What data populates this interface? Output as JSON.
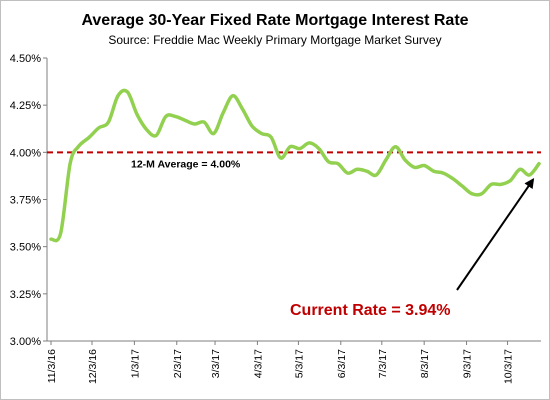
{
  "chart_data": {
    "type": "line",
    "title": "Average 30-Year Fixed Rate Mortgage Interest Rate",
    "subtitle": "Source: Freddie Mac Weekly Primary Mortgage Market Survey",
    "xlabel": "",
    "ylabel": "",
    "ylim": [
      3.0,
      4.5
    ],
    "y_ticks": [
      "3.00%",
      "3.25%",
      "3.50%",
      "3.75%",
      "4.00%",
      "4.25%",
      "4.50%"
    ],
    "x_tick_labels": [
      "11/3/16",
      "12/3/16",
      "1/3/17",
      "2/3/17",
      "3/3/17",
      "4/3/17",
      "5/3/17",
      "6/3/17",
      "7/3/17",
      "8/3/17",
      "9/3/17",
      "10/3/17"
    ],
    "grid": false,
    "series": [
      {
        "color": "#92d050",
        "x": [
          "11/3/16",
          "11/10/16",
          "11/17/16",
          "11/23/16",
          "12/1/16",
          "12/8/16",
          "12/15/16",
          "12/22/16",
          "12/29/16",
          "1/5/17",
          "1/12/17",
          "1/19/17",
          "1/26/17",
          "2/2/17",
          "2/9/17",
          "2/16/17",
          "2/23/17",
          "3/2/17",
          "3/9/17",
          "3/16/17",
          "3/23/17",
          "3/30/17",
          "4/6/17",
          "4/13/17",
          "4/20/17",
          "4/27/17",
          "5/4/17",
          "5/11/17",
          "5/18/17",
          "5/25/17",
          "6/1/17",
          "6/8/17",
          "6/15/17",
          "6/22/17",
          "6/29/17",
          "7/6/17",
          "7/13/17",
          "7/20/17",
          "7/27/17",
          "8/3/17",
          "8/10/17",
          "8/17/17",
          "8/24/17",
          "8/31/17",
          "9/7/17",
          "9/14/17",
          "9/21/17",
          "9/28/17",
          "10/5/17",
          "10/12/17",
          "10/19/17",
          "10/26/17"
        ],
        "values": [
          3.54,
          3.57,
          3.94,
          4.03,
          4.08,
          4.13,
          4.16,
          4.3,
          4.32,
          4.2,
          4.12,
          4.09,
          4.19,
          4.19,
          4.17,
          4.15,
          4.16,
          4.1,
          4.21,
          4.3,
          4.23,
          4.14,
          4.1,
          4.08,
          3.97,
          4.03,
          4.02,
          4.05,
          4.02,
          3.95,
          3.94,
          3.89,
          3.91,
          3.9,
          3.88,
          3.96,
          4.03,
          3.96,
          3.92,
          3.93,
          3.9,
          3.89,
          3.86,
          3.82,
          3.78,
          3.78,
          3.83,
          3.83,
          3.85,
          3.91,
          3.88,
          3.94
        ]
      }
    ],
    "reference_line": {
      "value": 4.0,
      "color": "#c00000",
      "label": "12-M Average = 4.00%"
    },
    "annotation": {
      "text": "Current Rate = 3.94%",
      "color": "#c00000"
    }
  }
}
